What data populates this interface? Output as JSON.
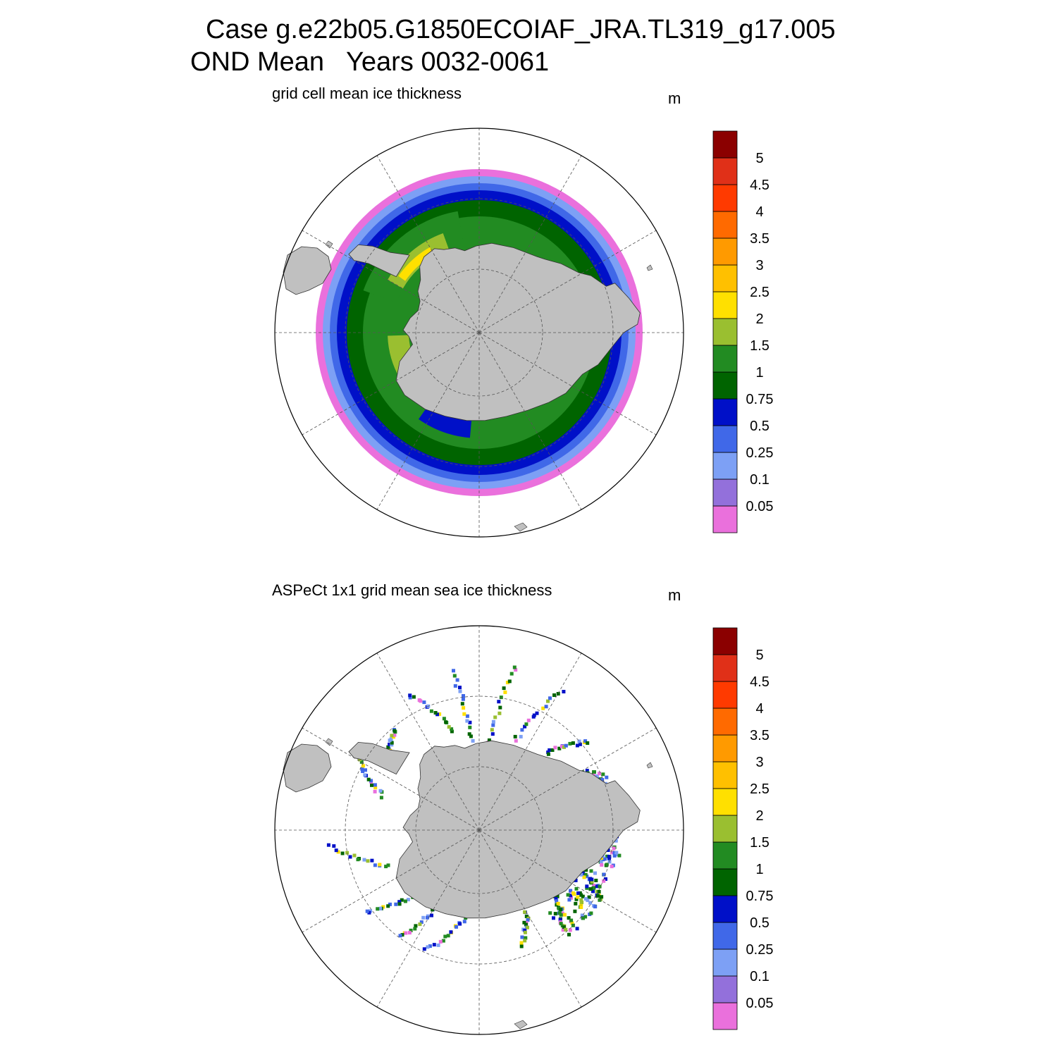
{
  "title": {
    "line1": "Case g.e22b05.G1850ECOIAF_JRA.TL319_g17.005",
    "line2": "OND Mean   Years 0032-0061"
  },
  "colors": {
    "land": "#c0c0c0",
    "palette": [
      "#ea70dc",
      "#9370db",
      "#7da0f5",
      "#4068e8",
      "#0010c8",
      "#006400",
      "#228b22",
      "#9abf30",
      "#ffe000",
      "#ffc000",
      "#ff9a00",
      "#ff6a00",
      "#ff3a00",
      "#e03018",
      "#8b0000"
    ]
  },
  "chart_data": [
    {
      "type": "heatmap",
      "projection": "south-polar-stereographic",
      "title": "grid cell mean ice thickness",
      "units": "m",
      "colorbar": {
        "levels": [
          "0.05",
          "0.1",
          "0.25",
          "0.5",
          "0.75",
          "1",
          "1.5",
          "2",
          "2.5",
          "3",
          "3.5",
          "4",
          "4.5",
          "5"
        ],
        "level_values": [
          0.05,
          0.1,
          0.25,
          0.5,
          0.75,
          1,
          1.5,
          2,
          2.5,
          3,
          3.5,
          4,
          4.5,
          5
        ]
      },
      "field": "continuous ice band around Antarctica; thickest (1.5-2.5 m) in western Weddell Sea, 0.75-1.5 m in Ross/Amundsen sectors, thinning to <0.1 m at ice edge"
    },
    {
      "type": "heatmap",
      "projection": "south-polar-stereographic",
      "title": "ASPeCt 1x1 grid mean sea ice thickness",
      "units": "m",
      "colorbar": {
        "levels": [
          "0.05",
          "0.1",
          "0.25",
          "0.5",
          "0.75",
          "1",
          "1.5",
          "2",
          "2.5",
          "3",
          "3.5",
          "4",
          "4.5",
          "5"
        ],
        "level_values": [
          0.05,
          0.1,
          0.25,
          0.5,
          0.75,
          1,
          1.5,
          2,
          2.5,
          3,
          3.5,
          4,
          4.5,
          5
        ]
      },
      "field": "sparse ship-track observations, mostly 0.25-1.5 m, densest in East Antarctic sector"
    }
  ]
}
